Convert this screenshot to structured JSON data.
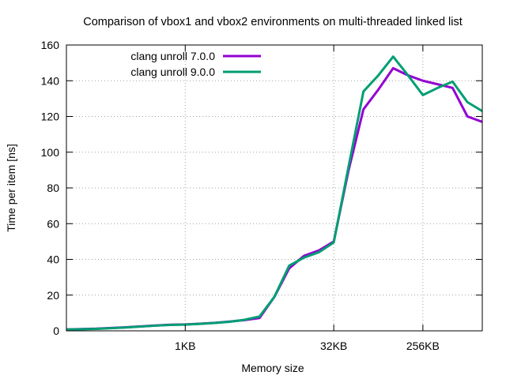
{
  "chart_data": {
    "type": "line",
    "title": "Comparison of vbox1 and vbox2 environments on multi-threaded linked list",
    "xlabel": "Memory size",
    "ylabel": "Time per item [ns]",
    "x_scale": "log2",
    "x_unit": "bytes",
    "xlim": [
      64,
      1048576
    ],
    "ylim": [
      0,
      160
    ],
    "yticks": [
      0,
      20,
      40,
      60,
      80,
      100,
      120,
      140,
      160
    ],
    "y_tick_labels": [
      "0",
      "20",
      "40",
      "60",
      "80",
      "100",
      "120",
      "140",
      "160"
    ],
    "xticks": [
      1024,
      32768,
      262144
    ],
    "x_tick_labels": [
      "1KB",
      "32KB",
      "256KB"
    ],
    "grid": true,
    "legend_position": "top-left",
    "series": [
      {
        "name": "clang unroll 7.0.0",
        "color": "#9400d3",
        "x": [
          64,
          128,
          256,
          512,
          724,
          1024,
          1448,
          2048,
          2896,
          4096,
          5793,
          8192,
          11585,
          16384,
          23170,
          32768,
          46341,
          65536,
          92682,
          131072,
          185364,
          262144,
          370728,
          524288,
          741455,
          1048576
        ],
        "y": [
          0.8,
          1.2,
          2.0,
          3.0,
          3.4,
          3.6,
          4.0,
          4.5,
          5.2,
          6.0,
          7.2,
          19.0,
          35.0,
          42.0,
          45.0,
          50.0,
          90.0,
          124.0,
          135.0,
          147.0,
          143.0,
          140.0,
          138.0,
          136.0,
          120.0,
          117.0
        ]
      },
      {
        "name": "clang unroll 9.0.0",
        "color": "#009e73",
        "x": [
          64,
          128,
          256,
          512,
          724,
          1024,
          1448,
          2048,
          2896,
          4096,
          5793,
          8192,
          11585,
          16384,
          23170,
          32768,
          46341,
          65536,
          92682,
          131072,
          185364,
          262144,
          370728,
          524288,
          741455,
          1048576
        ],
        "y": [
          0.7,
          1.1,
          1.9,
          2.9,
          3.3,
          3.5,
          3.9,
          4.4,
          5.1,
          6.2,
          8.0,
          19.0,
          36.5,
          41.0,
          44.0,
          49.5,
          92.0,
          134.0,
          143.0,
          153.5,
          143.0,
          132.0,
          136.0,
          139.5,
          128.0,
          123.0
        ]
      }
    ]
  }
}
